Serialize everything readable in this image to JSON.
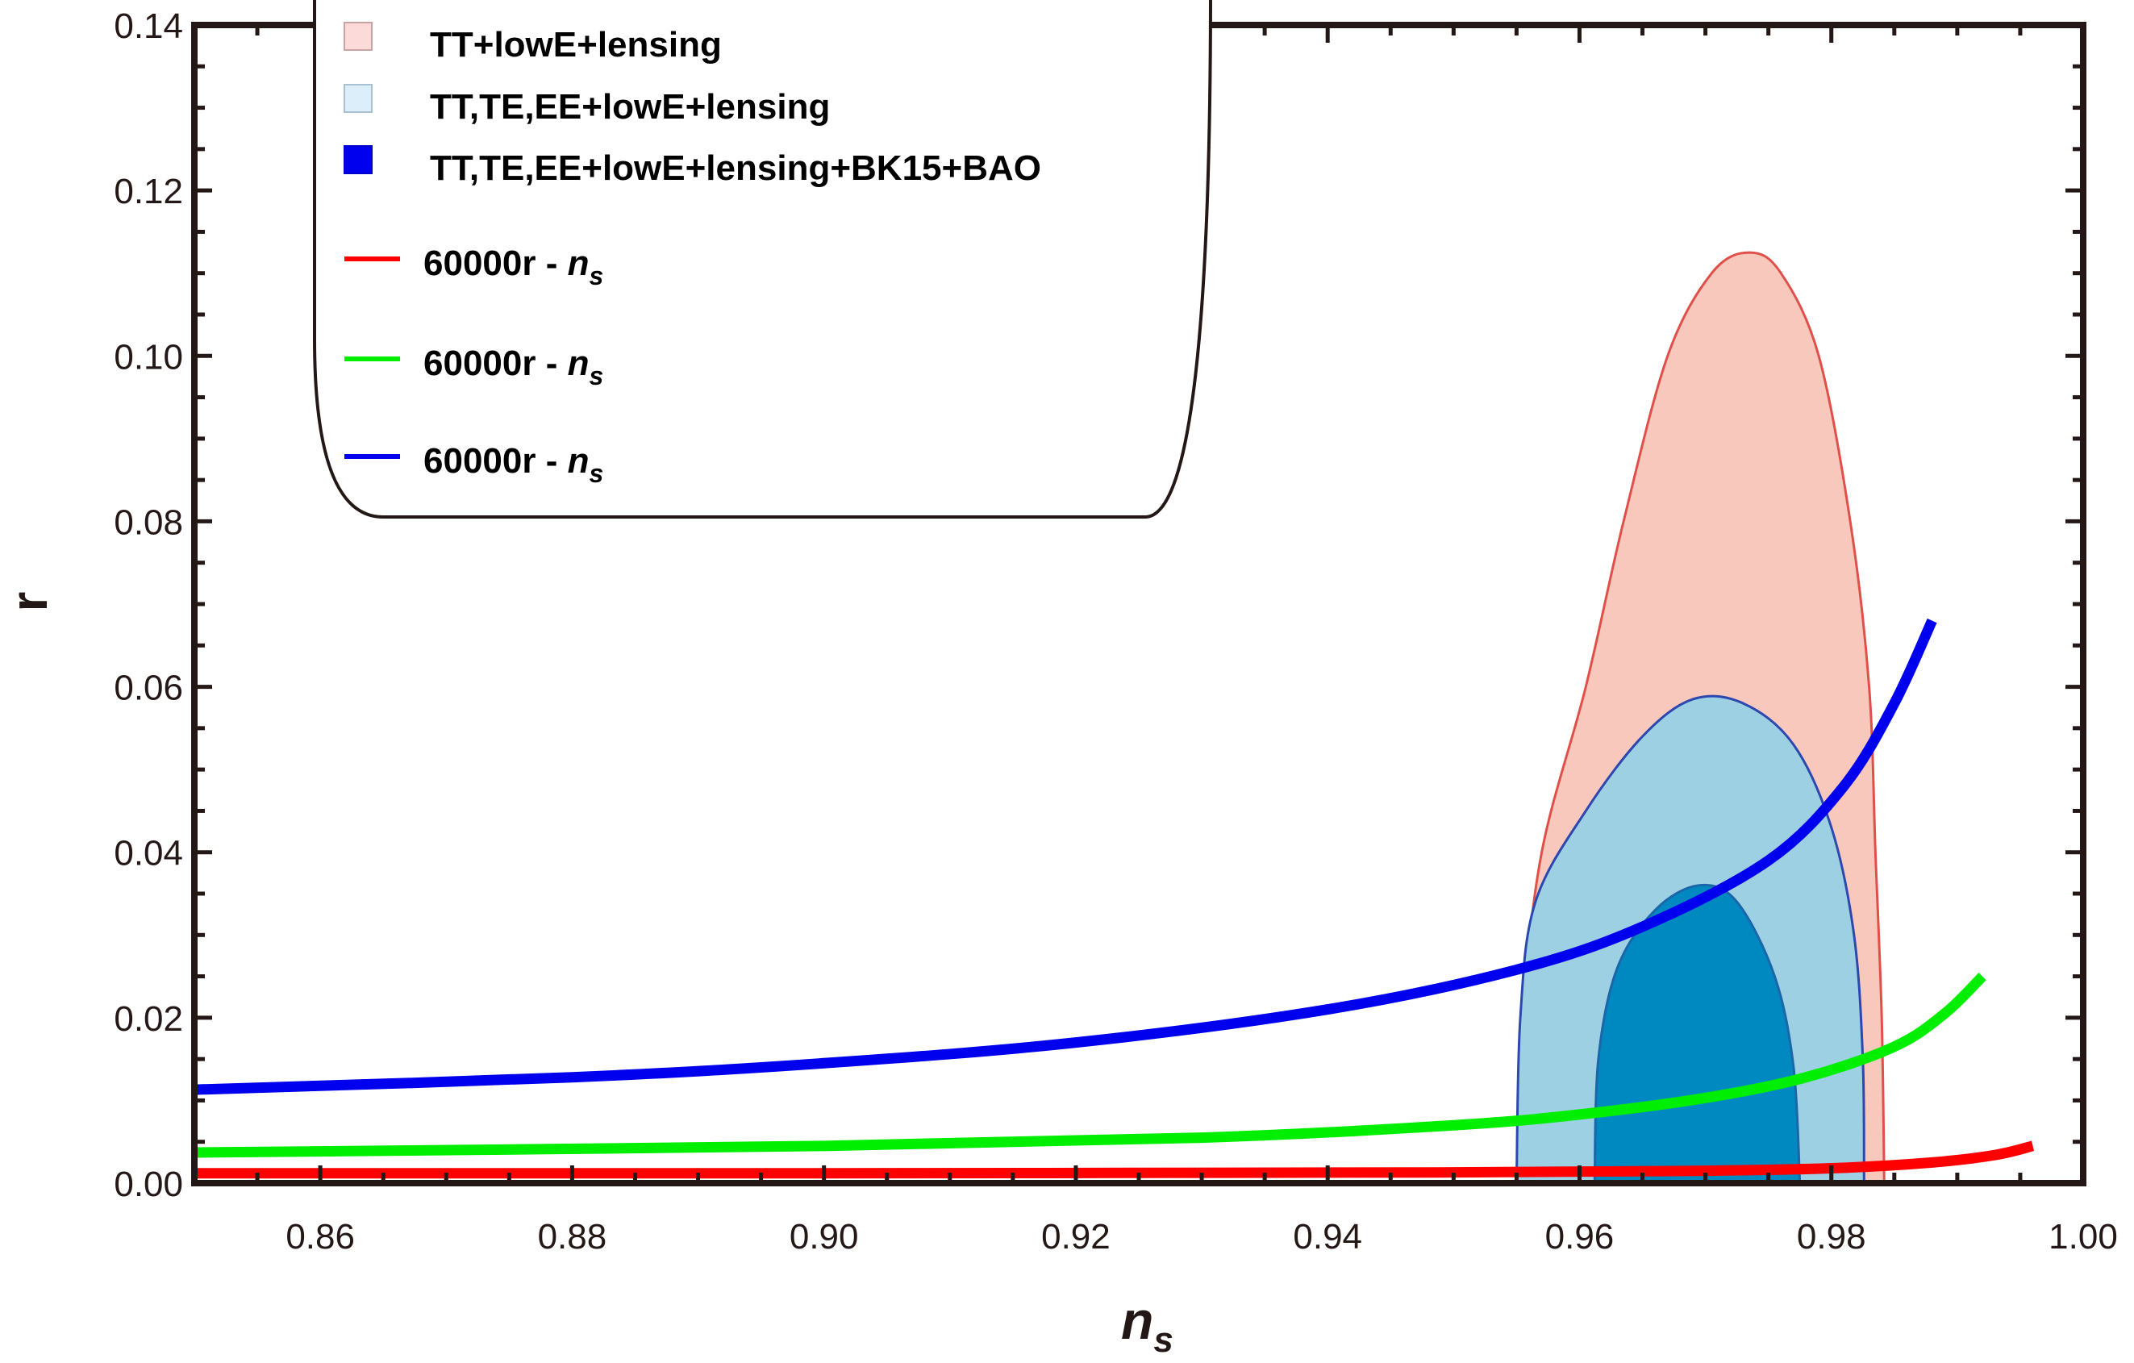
{
  "chart_data": {
    "type": "line",
    "title": "",
    "xlabel": "n",
    "xlabel_sub": "s",
    "ylabel": "r",
    "xlim": [
      0.85,
      1.0
    ],
    "ylim": [
      0.0,
      0.14
    ],
    "xticks": [
      "0.86",
      "0.88",
      "0.90",
      "0.92",
      "0.94",
      "0.96",
      "0.98",
      "1.00"
    ],
    "xtick_values": [
      0.86,
      0.88,
      0.9,
      0.92,
      0.94,
      0.96,
      0.98,
      1.0
    ],
    "yticks": [
      "0.00",
      "0.02",
      "0.04",
      "0.06",
      "0.08",
      "0.10",
      "0.12",
      "0.14"
    ],
    "ytick_values": [
      0,
      0.02,
      0.04,
      0.06,
      0.08,
      0.1,
      0.12,
      0.14
    ],
    "grid": false,
    "legend_position": "top-left",
    "regions": [
      {
        "name": "TT+lowE+lensing",
        "fill": "#f8c8bd",
        "stroke": "#e0504a",
        "outline": [
          [
            0.955,
            0
          ],
          [
            0.9555,
            0.02
          ],
          [
            0.957,
            0.04
          ],
          [
            0.9605,
            0.06
          ],
          [
            0.9635,
            0.08
          ],
          [
            0.967,
            0.1
          ],
          [
            0.9705,
            0.11
          ],
          [
            0.9735,
            0.1125
          ],
          [
            0.976,
            0.11
          ],
          [
            0.979,
            0.1
          ],
          [
            0.9815,
            0.08
          ],
          [
            0.983,
            0.06
          ],
          [
            0.9835,
            0.04
          ],
          [
            0.984,
            0.02
          ],
          [
            0.9842,
            0
          ]
        ]
      },
      {
        "name": "TT,TE,EE+lowE+lensing",
        "fill": "#9dd0e3",
        "stroke": "#2c48b0",
        "outline": [
          [
            0.955,
            0
          ],
          [
            0.9553,
            0.02
          ],
          [
            0.9565,
            0.034
          ],
          [
            0.9605,
            0.045
          ],
          [
            0.965,
            0.054
          ],
          [
            0.969,
            0.0585
          ],
          [
            0.973,
            0.058
          ],
          [
            0.977,
            0.053
          ],
          [
            0.98,
            0.043
          ],
          [
            0.9818,
            0.03
          ],
          [
            0.9825,
            0.015
          ],
          [
            0.9826,
            0
          ]
        ]
      },
      {
        "name": "TT,TE,EE+lowE+lensing+BK15+BAO",
        "fill": "#0089c0",
        "stroke": "#1a66a8",
        "outline": [
          [
            0.9612,
            0
          ],
          [
            0.9615,
            0.015
          ],
          [
            0.963,
            0.026
          ],
          [
            0.966,
            0.033
          ],
          [
            0.9695,
            0.036
          ],
          [
            0.9725,
            0.034
          ],
          [
            0.9755,
            0.025
          ],
          [
            0.977,
            0.014
          ],
          [
            0.9775,
            0
          ]
        ]
      }
    ],
    "series": [
      {
        "name": "60000r - n",
        "sub": "s",
        "color": "#ff0000",
        "x": [
          0.85,
          0.9,
          0.95,
          0.97,
          0.98,
          0.988,
          0.993,
          0.996
        ],
        "y": [
          0.0012,
          0.0012,
          0.0013,
          0.0015,
          0.0018,
          0.0025,
          0.0034,
          0.0045
        ]
      },
      {
        "name": "60000r - n",
        "sub": "s",
        "color": "#00ee00",
        "x": [
          0.85,
          0.9,
          0.93,
          0.95,
          0.96,
          0.97,
          0.978,
          0.985,
          0.989,
          0.992
        ],
        "y": [
          0.0037,
          0.0045,
          0.0055,
          0.007,
          0.0083,
          0.0103,
          0.0128,
          0.0165,
          0.0205,
          0.025
        ]
      },
      {
        "name": "60000r - n",
        "sub": "s",
        "color": "#0000ee",
        "x": [
          0.85,
          0.88,
          0.9,
          0.92,
          0.94,
          0.955,
          0.965,
          0.975,
          0.981,
          0.985,
          0.988
        ],
        "y": [
          0.0113,
          0.0128,
          0.0145,
          0.017,
          0.021,
          0.0258,
          0.031,
          0.039,
          0.048,
          0.058,
          0.068
        ]
      }
    ]
  }
}
